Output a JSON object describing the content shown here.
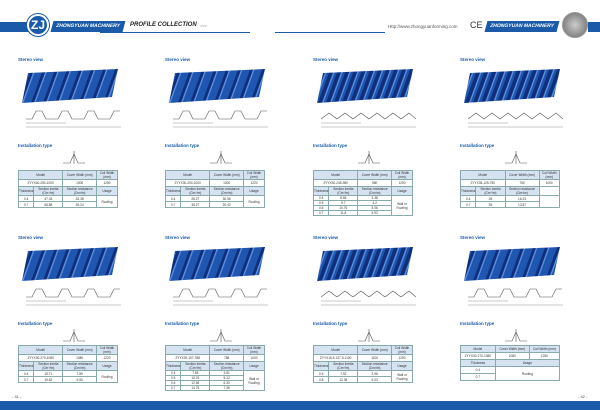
{
  "header": {
    "brand": "ZHONGYUAN MACHINERY",
    "collection": "PROFILE COLLECTION",
    "arrows": ">>>",
    "url": "Http://www.zhongyuanforming.com",
    "ce": "CE",
    "brand_right": "ZHONGYUAN MACHINERY",
    "logo": "ZJ"
  },
  "labels": {
    "stereo": "Stereo view",
    "install": "Installation type"
  },
  "table_headers": {
    "model": "Model",
    "cover": "Cover Width (mm)",
    "coil": "Coil Width (mm)",
    "thickness": "Thickness",
    "inertia": "Section inertia (Cm⁴/m)",
    "resistance": "Section resistance (Cm³/m)",
    "usage": "Usage"
  },
  "panels": [
    {
      "model": "ZYYX40-250-1000",
      "cover": "1000",
      "coil": "1250",
      "rows": [
        [
          "0.4",
          "47.33",
          "33.38"
        ],
        [
          "0.7",
          "65.58",
          "25.24"
        ]
      ],
      "usage": "Roofing"
    },
    {
      "model": "ZYYX30-250-1000",
      "cover": "1000",
      "coil": "1220",
      "rows": [
        [
          "0.4",
          "26.27",
          "30.56"
        ],
        [
          "0.7",
          "35.27",
          "20.42"
        ]
      ],
      "usage": "Roofing"
    },
    {
      "model": "ZYYX30-245-980",
      "cover": "980",
      "coil": "1200",
      "rows": [
        [
          "0.4",
          "8.55",
          "3.38"
        ],
        [
          "0.5",
          "9.7",
          "4.2"
        ],
        [
          "0.6",
          "10.76",
          "5.06"
        ],
        [
          "0.7",
          "11.8",
          "5.92"
        ]
      ],
      "usage": "Wall or Roofing"
    },
    {
      "model": "ZYYX35-125-750",
      "cover": "750",
      "coil": "1000",
      "rows": [
        [
          "0.4",
          "28",
          "16.23"
        ],
        [
          "0.7",
          "35",
          "13.57"
        ]
      ],
      "usage": ""
    },
    {
      "model": "ZYYX30-270-1080",
      "cover": "1080",
      "coil": "1220",
      "rows": [
        [
          "0.4",
          "15.71",
          "7.89"
        ],
        [
          "0.7",
          "19.82",
          "9.55"
        ]
      ],
      "usage": "Roofing"
    },
    {
      "model": "ZYYX29-197-788",
      "cover": "788",
      "coil": "1000",
      "rows": [
        [
          "0.4",
          "7.65",
          "3.81"
        ],
        [
          "0.5",
          "10.76",
          "5.12"
        ],
        [
          "0.6",
          "12.56",
          "6.30"
        ],
        [
          "0.7",
          "14.75",
          "7.36"
        ]
      ],
      "usage": "Wall or Roofing"
    },
    {
      "model": "ZYYX16.5-137.5-1100",
      "cover": "1100",
      "coil": "1250",
      "rows": [
        [
          "0.5",
          "7.92",
          "3.98"
        ],
        [
          "0.8",
          "12.38",
          "6.03"
        ]
      ],
      "usage": "Wall or Roofing"
    },
    {
      "model": "ZYYX30-270-1080",
      "cover": "1080",
      "coil": "1250",
      "rows": [
        [
          "0.4"
        ],
        [
          "0.7"
        ]
      ],
      "usage": "Roofing",
      "simple": true
    }
  ],
  "page_left": "- 41 -",
  "page_right": "- 42 -",
  "colors": {
    "brand": "#1a5aa8",
    "header_cell": "#d4e2f2"
  }
}
